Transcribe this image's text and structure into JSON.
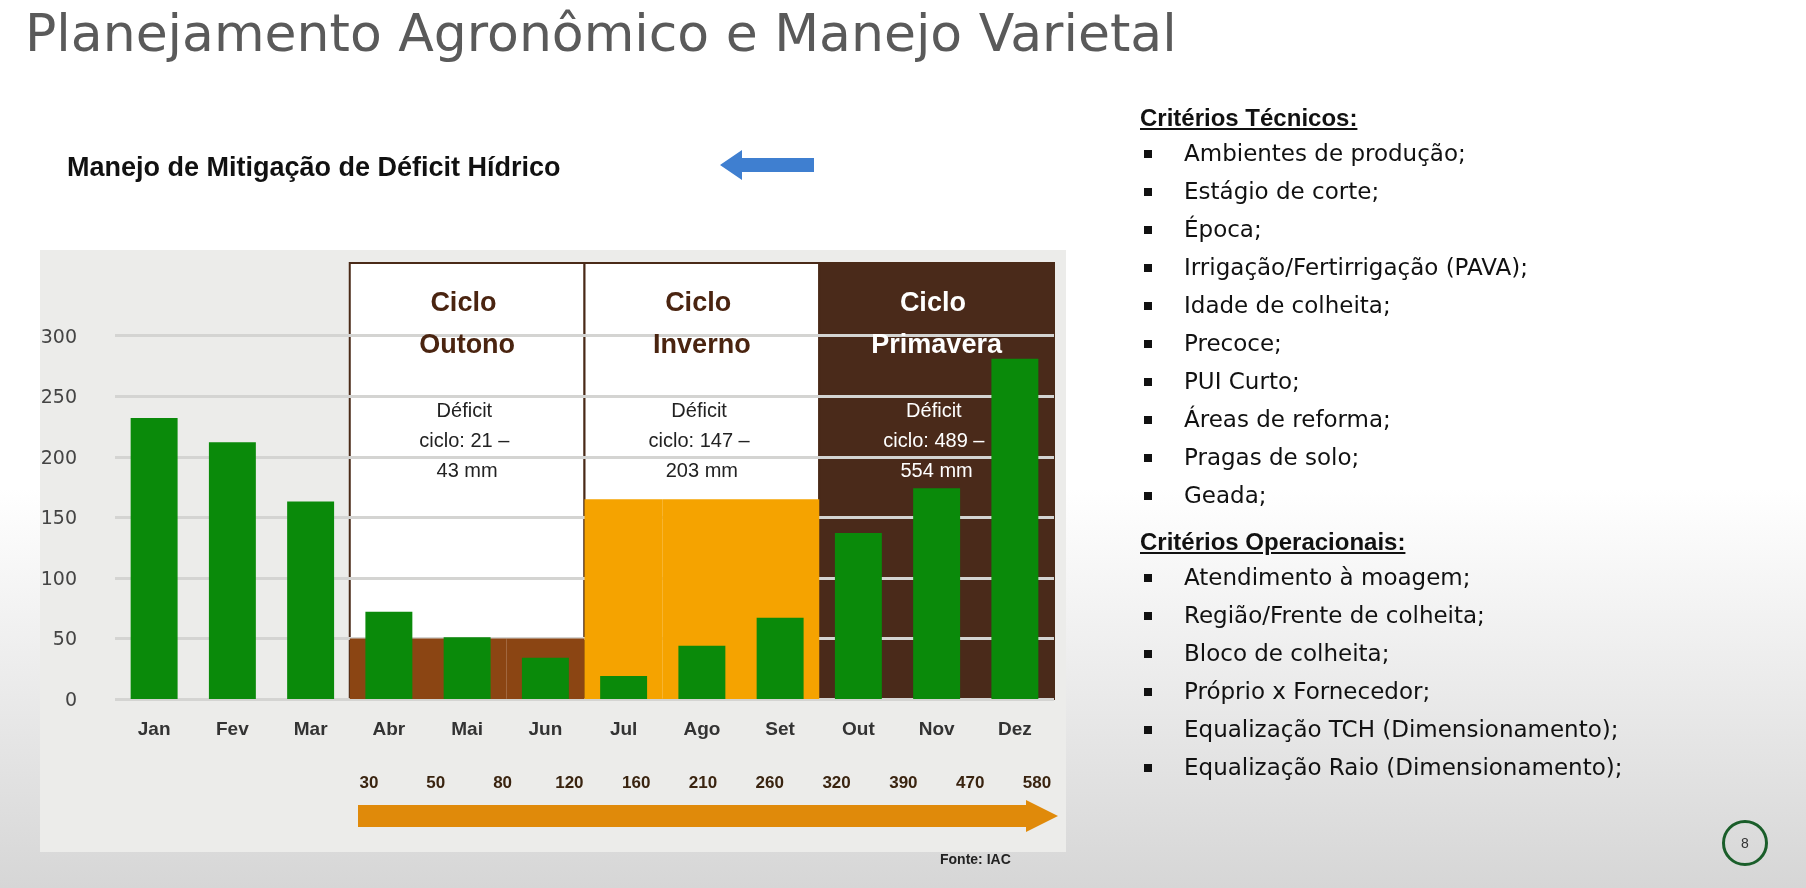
{
  "chart_data": [
    {
      "type": "bar",
      "title": "Planejamento Agronômico e Manejo Varietal",
      "subtitle": "Manejo de Mitigação de Déficit Hídrico",
      "categories": [
        "Jan",
        "Fev",
        "Mar",
        "Abr",
        "Mai",
        "Jun",
        "Jul",
        "Ago",
        "Set",
        "Out",
        "Nov",
        "Dez"
      ],
      "series": [
        {
          "type": "bar",
          "color": "#0a8a0a",
          "values": [
            232,
            212,
            163,
            72,
            51,
            34,
            19,
            44,
            67,
            137,
            174,
            281
          ]
        },
        {
          "type": "bar",
          "colors": [
            null,
            null,
            null,
            "#8b4513",
            "#8b4513",
            "#8b4513",
            "#f5a300",
            "#f5a300",
            "#f5a300",
            null,
            null,
            null
          ],
          "values": [
            null,
            null,
            null,
            50,
            50,
            50,
            165,
            165,
            165,
            null,
            null,
            null
          ]
        }
      ],
      "ylim": [
        0,
        360
      ],
      "yticks": [
        0,
        50,
        100,
        150,
        200,
        250,
        300
      ],
      "grid": "y",
      "bands": [
        {
          "axis": "x",
          "from": "Abr",
          "to": "Jun",
          "label": "Ciclo Outono",
          "color": "#ffffff"
        },
        {
          "axis": "x",
          "from": "Jul",
          "to": "Set",
          "label": "Ciclo Inverno",
          "color": "#ffffff"
        },
        {
          "axis": "x",
          "from": "Out",
          "to": "Dez",
          "label": "Ciclo Primavera",
          "color": "#4a2a1a"
        }
      ],
      "annotations": [
        "Déficit ciclo: 21 – 43 mm",
        "Déficit ciclo: 147 – 203 mm",
        "Déficit ciclo: 489 – 554 mm",
        "30",
        "50",
        "80",
        "120",
        "160",
        "210",
        "260",
        "320",
        "390",
        "470",
        "580",
        "Fonte: IAC"
      ]
    },
    {
      "type": "other",
      "title": "Critérios Técnicos:",
      "annotations": [
        "Ambientes de produção;",
        "Estágio de corte;",
        "Época;",
        "Irrigação/Fertirrigação (PAVA);",
        "Idade de colheita;",
        "Precoce;",
        "PUI Curto;",
        "Áreas de reforma;",
        "Pragas de solo;",
        "Geada;"
      ]
    },
    {
      "type": "other",
      "title": "Critérios Operacionais:",
      "annotations": [
        "Atendimento à moagem;",
        "Região/Frente de colheita;",
        "Bloco de colheita;",
        "Próprio x Fornecedor;",
        "Equalização TCH (Dimensionamento);",
        "Equalização Raio (Dimensionamento);"
      ]
    },
    {
      "type": "other",
      "annotations": [
        "8"
      ]
    }
  ]
}
